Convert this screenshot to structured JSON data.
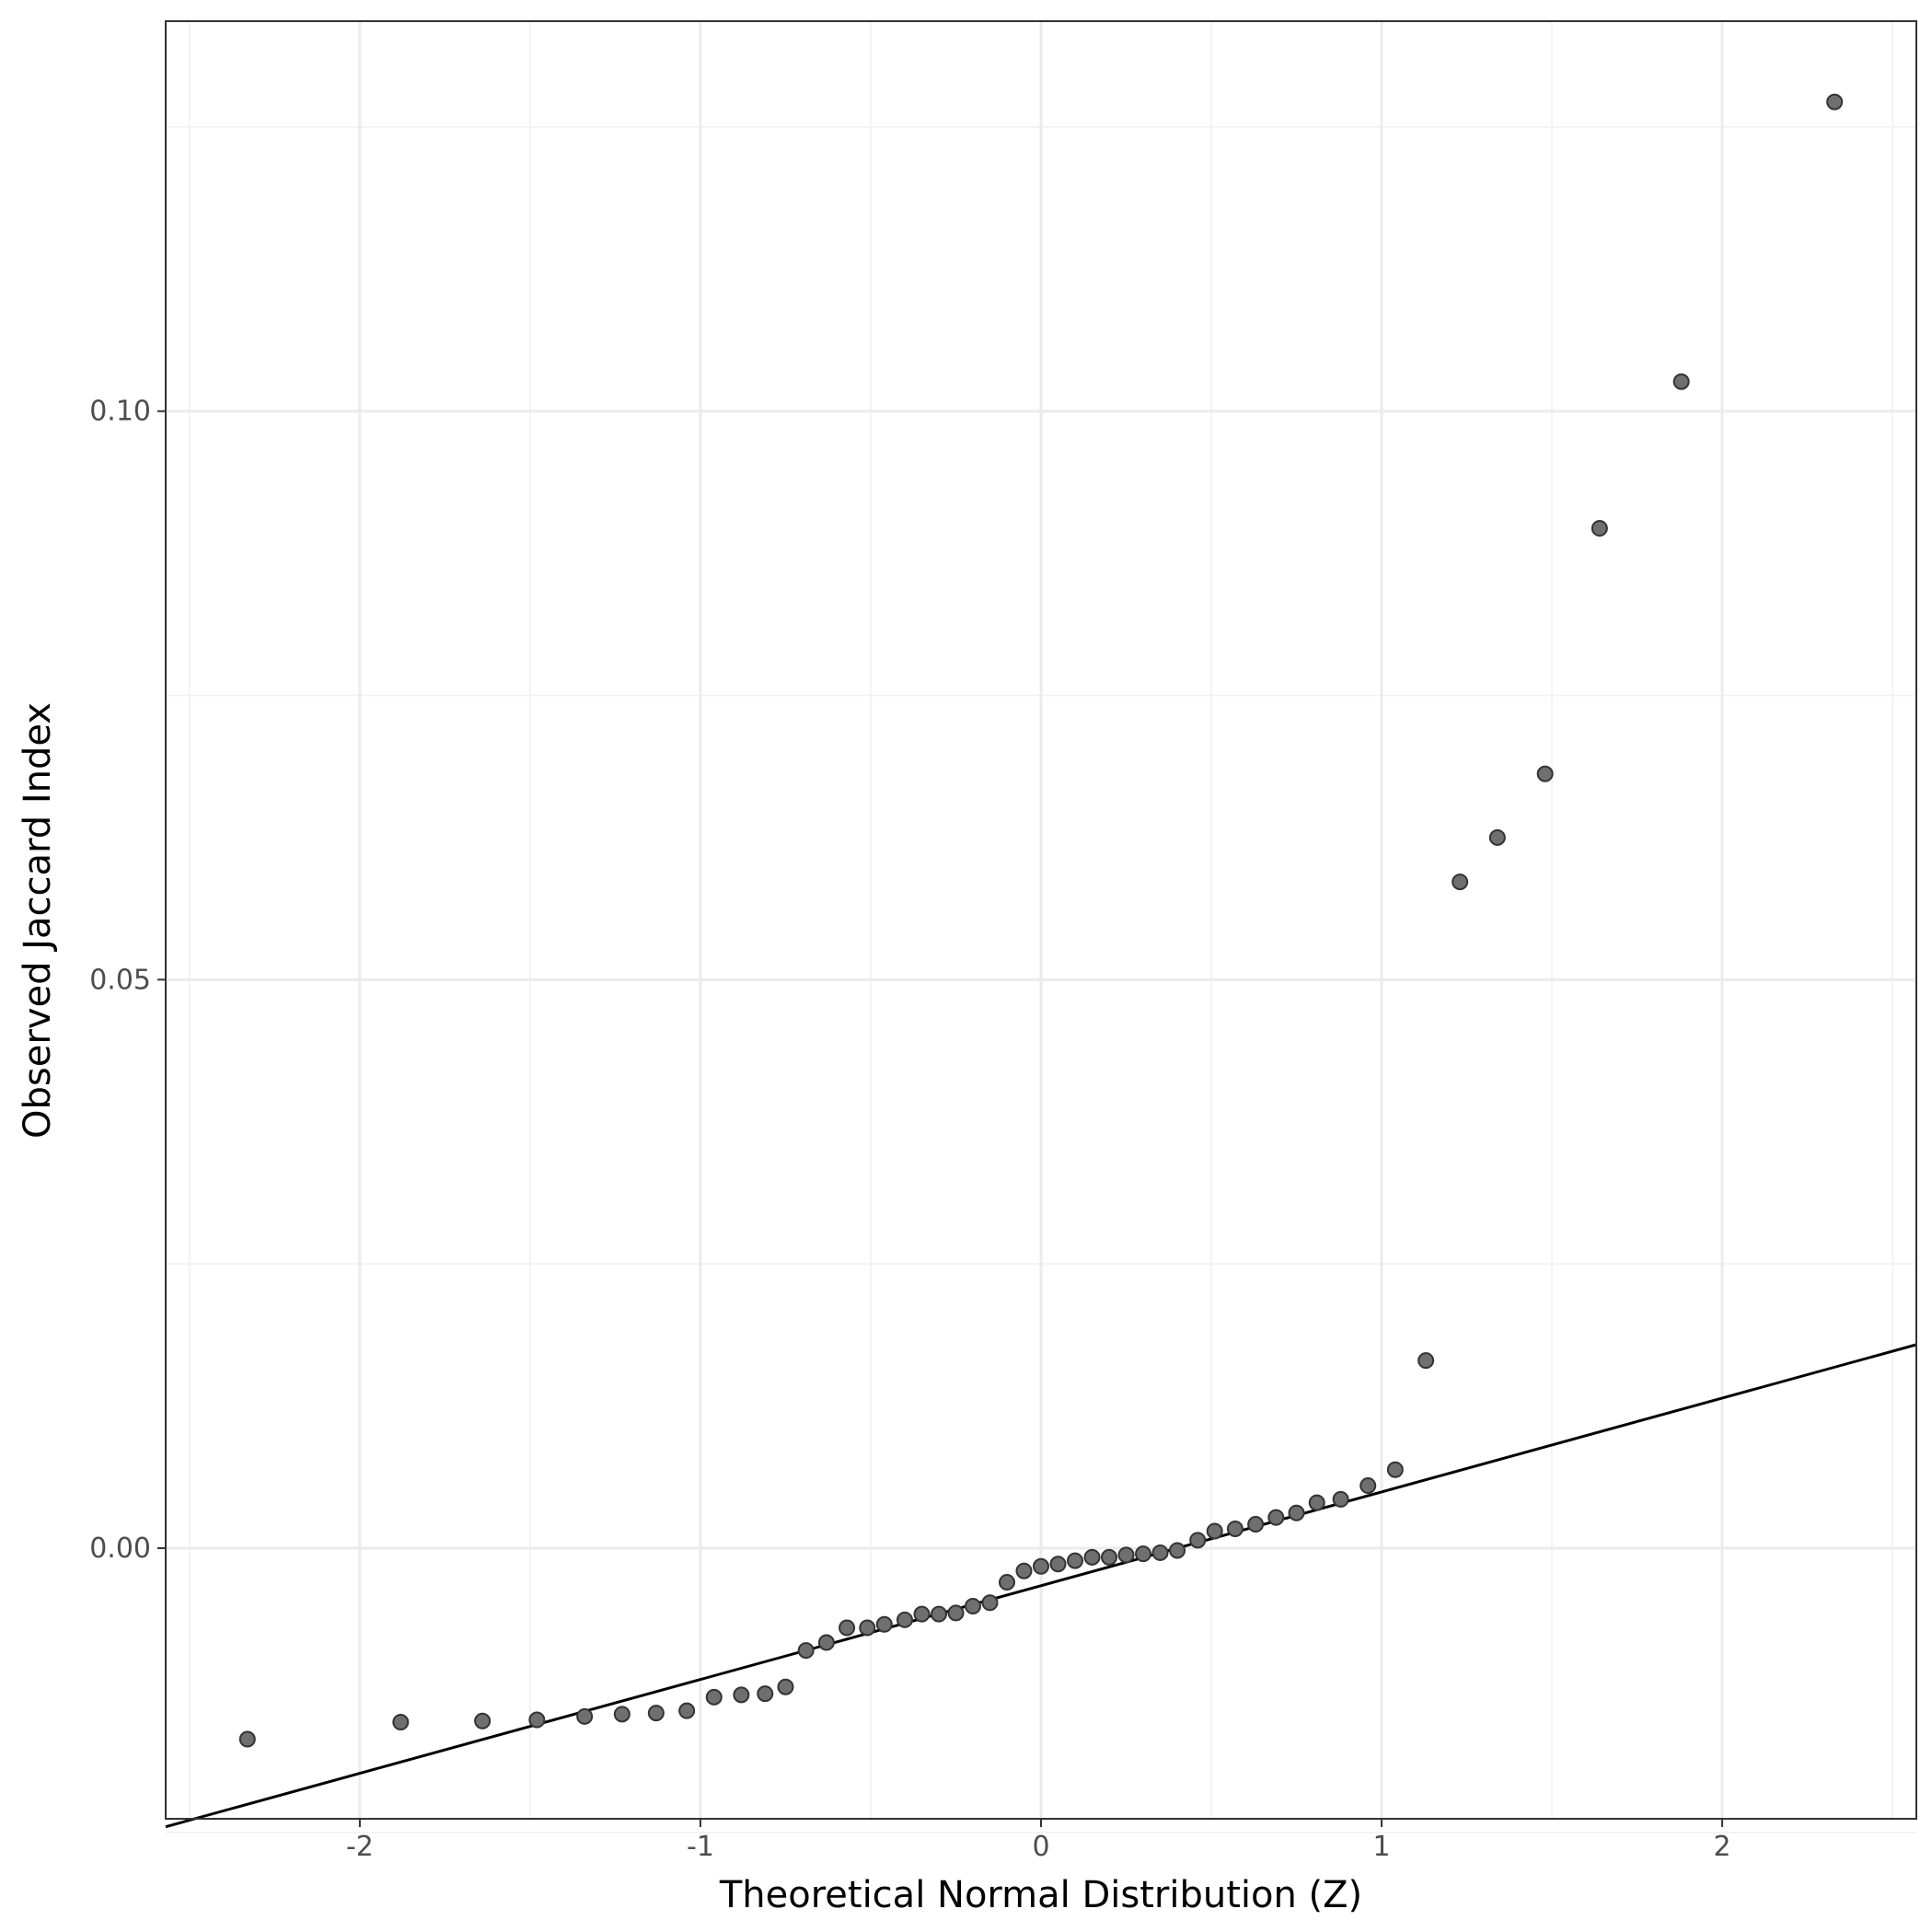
{
  "chart_data": {
    "type": "scatter",
    "title": "",
    "xlabel": "Theoretical Normal Distribution (Z)",
    "ylabel": "Observed Jaccard Index",
    "xlim": [
      -2.57,
      2.57
    ],
    "ylim": [
      -0.0238,
      0.1343
    ],
    "x_ticks": [
      -2,
      -1,
      0,
      1,
      2
    ],
    "x_tick_labels": [
      "-2",
      "-1",
      "0",
      "1",
      "2"
    ],
    "x_minor_ticks": [
      -2.5,
      -1.5,
      -0.5,
      0.5,
      1.5,
      2.5
    ],
    "y_ticks": [
      0.0,
      0.05,
      0.1
    ],
    "y_tick_labels": [
      "0.00",
      "0.05",
      "0.10"
    ],
    "y_minor_ticks": [
      -0.025,
      0.025,
      0.075,
      0.125
    ],
    "grid": true,
    "legend": "none",
    "colors": {
      "point_fill": "#6f6f6f",
      "point_stroke": "#333333",
      "line": "#000000",
      "grid_major": "#ebebeb",
      "grid_minor": "#f3f3f3",
      "panel_border": "#333333"
    },
    "reference_line": {
      "x": [
        -2.57,
        2.57
      ],
      "y": [
        -0.0245,
        0.0179
      ]
    },
    "points": {
      "x": [
        -2.33,
        -1.88,
        -1.64,
        -1.48,
        -1.34,
        -1.23,
        -1.13,
        -1.04,
        -0.96,
        -0.88,
        -0.81,
        -0.75,
        -0.69,
        -0.63,
        -0.57,
        -0.51,
        -0.46,
        -0.4,
        -0.35,
        -0.3,
        -0.25,
        -0.2,
        -0.15,
        -0.1,
        -0.05,
        0.0,
        0.05,
        0.1,
        0.15,
        0.2,
        0.25,
        0.3,
        0.35,
        0.4,
        0.46,
        0.51,
        0.57,
        0.63,
        0.69,
        0.75,
        0.81,
        0.88,
        0.96,
        1.04,
        1.13,
        1.23,
        1.34,
        1.48,
        1.64,
        1.88,
        2.33
      ],
      "y": [
        -0.0168,
        -0.0153,
        -0.0152,
        -0.0151,
        -0.0148,
        -0.0146,
        -0.0145,
        -0.0143,
        -0.0131,
        -0.0129,
        -0.0128,
        -0.0122,
        -0.009,
        -0.0083,
        -0.007,
        -0.007,
        -0.0067,
        -0.0063,
        -0.0058,
        -0.0058,
        -0.0057,
        -0.0051,
        -0.0048,
        -0.003,
        -0.002,
        -0.0016,
        -0.0014,
        -0.0011,
        -0.0008,
        -0.0008,
        -0.0006,
        -0.0005,
        -0.0004,
        -0.0002,
        0.0007,
        0.0015,
        0.0017,
        0.0021,
        0.0027,
        0.0031,
        0.004,
        0.0043,
        0.0055,
        0.0069,
        0.0165,
        0.0586,
        0.0625,
        0.0681,
        0.0897,
        0.1026,
        0.1272
      ]
    }
  }
}
